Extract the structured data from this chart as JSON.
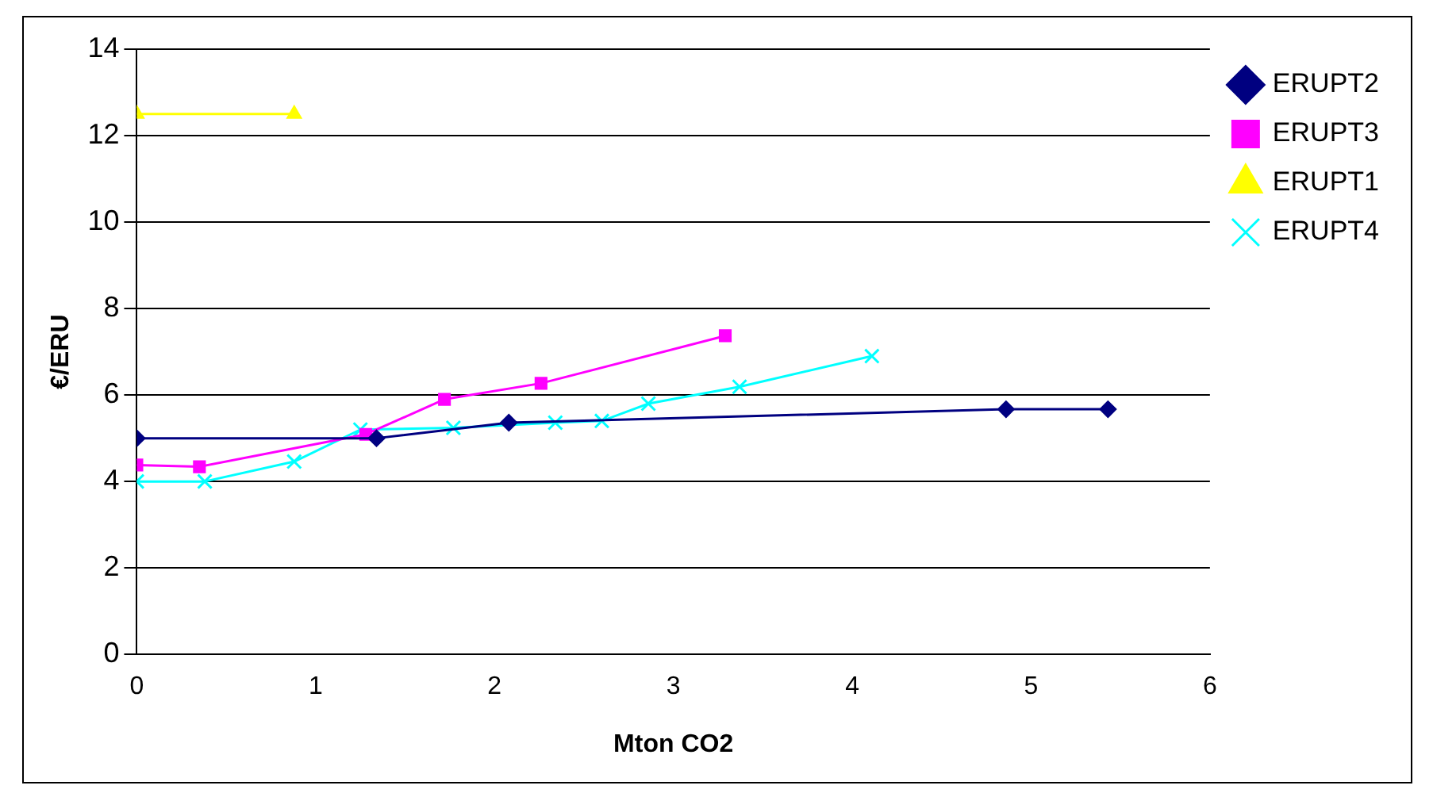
{
  "chart_data": {
    "type": "line",
    "xlabel": "Mton CO2",
    "ylabel": "€/ERU",
    "xlim": [
      0,
      6
    ],
    "xticks": [
      0,
      1,
      2,
      3,
      4,
      5,
      6
    ],
    "ylim": [
      0,
      14
    ],
    "yticks": [
      0,
      2,
      4,
      6,
      8,
      10,
      12,
      14
    ],
    "grid": "y",
    "legend": "top right",
    "line_style": "solid",
    "series": [
      {
        "name": "ERUPT2",
        "color": "#000080",
        "marker": "diamond",
        "x": [
          0,
          1.34,
          2.08,
          4.86,
          5.43
        ],
        "values": [
          5.0,
          5.0,
          5.36,
          5.67,
          5.67
        ]
      },
      {
        "name": "ERUPT3",
        "color": "#ff00ff",
        "marker": "square",
        "x": [
          0,
          0.35,
          1.28,
          1.72,
          2.26,
          3.29
        ],
        "values": [
          4.38,
          4.34,
          5.09,
          5.9,
          6.27,
          7.37
        ]
      },
      {
        "name": "ERUPT1",
        "color": "#ffff00",
        "marker": "triangle",
        "x": [
          0,
          0.88
        ],
        "values": [
          12.5,
          12.5
        ]
      },
      {
        "name": "ERUPT4",
        "color": "#00ffff",
        "marker": "cross",
        "x": [
          0,
          0.38,
          0.88,
          1.25,
          1.77,
          2.34,
          2.6,
          2.86,
          3.37,
          4.11
        ],
        "values": [
          4.0,
          4.0,
          4.46,
          5.2,
          5.24,
          5.36,
          5.4,
          5.8,
          6.19,
          6.9
        ]
      }
    ]
  }
}
